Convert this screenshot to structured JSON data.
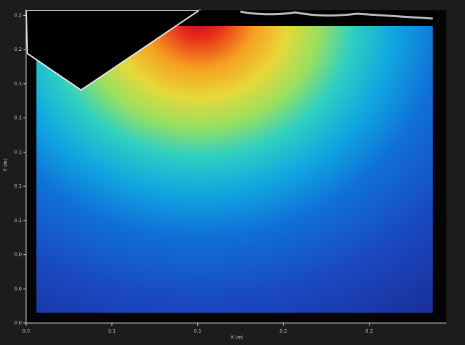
{
  "chart_data": {
    "type": "heatmap",
    "xlabel": "X (m)",
    "ylabel": "Y (m)",
    "xlim": [
      0,
      0.245
    ],
    "ylim": [
      0,
      0.183
    ],
    "xticks": [
      {
        "value": 0,
        "label": "0.0"
      },
      {
        "value": 0.05,
        "label": "0.1"
      },
      {
        "value": 0.1,
        "label": "0.1"
      },
      {
        "value": 0.15,
        "label": "0.2"
      },
      {
        "value": 0.2,
        "label": "0.2"
      }
    ],
    "yticks": [
      {
        "value": 0,
        "label": "0.0"
      },
      {
        "value": 0.02,
        "label": "0.0"
      },
      {
        "value": 0.04,
        "label": "0.0"
      },
      {
        "value": 0.06,
        "label": "0.1"
      },
      {
        "value": 0.08,
        "label": "0.1"
      },
      {
        "value": 0.1,
        "label": "0.1"
      },
      {
        "value": 0.12,
        "label": "0.1"
      },
      {
        "value": 0.14,
        "label": "0.1"
      },
      {
        "value": 0.16,
        "label": "0.2"
      },
      {
        "value": 0.18,
        "label": "0.2"
      }
    ]
  }
}
